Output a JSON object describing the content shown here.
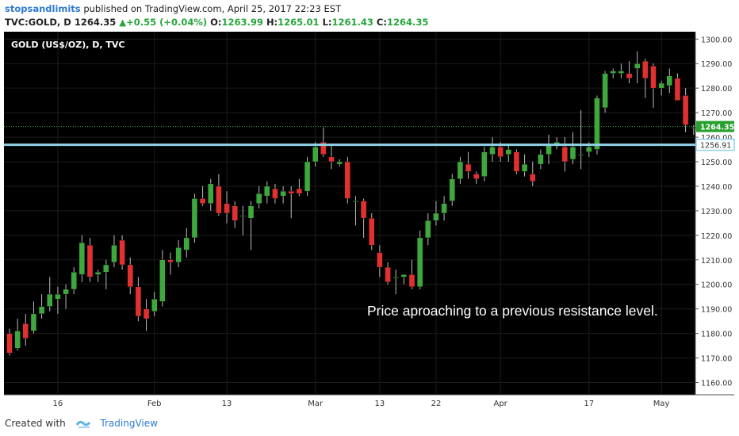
{
  "header": {
    "author": "stopsandlimits",
    "published_text": "published on TradingView.com, April 25, 2017 22:23 EST",
    "symbol": "TVC:GOLD, D",
    "last": "1264.35",
    "change": "+0.55 (+0.04%)",
    "o_label": "O:",
    "o_value": "1263.99",
    "h_label": "H:",
    "h_value": "1265.01",
    "l_label": "L:",
    "l_value": "1261.43",
    "c_label": "C:",
    "c_value": "1264.35"
  },
  "footer": {
    "created_with": "Created with",
    "brand": "TradingView"
  },
  "colors": {
    "background": "#000000",
    "up": "#3ea83e",
    "down": "#e03030",
    "level": "#8fd3e8",
    "price_line": "#3ea83e"
  },
  "chart_data": {
    "type": "candlestick",
    "title": "GOLD (US$/OZ), D, TVC",
    "annotation": "Price aproaching to a previous resistance level.",
    "ylim": [
      1155,
      1303
    ],
    "y_ticks": [
      "1160.00",
      "1170.00",
      "1180.00",
      "1190.00",
      "1200.00",
      "1210.00",
      "1220.00",
      "1230.00",
      "1240.00",
      "1250.00",
      "1260.00",
      "1270.00",
      "1280.00",
      "1290.00",
      "1300.00"
    ],
    "x_ticks": [
      {
        "label": "16",
        "index": 6
      },
      {
        "label": "Feb",
        "index": 18
      },
      {
        "label": "13",
        "index": 27
      },
      {
        "label": "Mar",
        "index": 38
      },
      {
        "label": "13",
        "index": 46
      },
      {
        "label": "22",
        "index": 53
      },
      {
        "label": "Apr",
        "index": 61
      },
      {
        "label": "17",
        "index": 72
      },
      {
        "label": "May",
        "index": 81
      }
    ],
    "horizontal_level": {
      "value": 1256.91,
      "label": "1256.91"
    },
    "last_price": {
      "value": 1264.35,
      "label": "1264.35"
    },
    "candles": [
      {
        "o": 1180,
        "h": 1182,
        "l": 1171,
        "c": 1172
      },
      {
        "o": 1174,
        "h": 1186,
        "l": 1173,
        "c": 1181
      },
      {
        "o": 1184,
        "h": 1188,
        "l": 1175,
        "c": 1178
      },
      {
        "o": 1181,
        "h": 1193,
        "l": 1180,
        "c": 1188
      },
      {
        "o": 1188,
        "h": 1196,
        "l": 1186,
        "c": 1191
      },
      {
        "o": 1191,
        "h": 1203,
        "l": 1189,
        "c": 1196
      },
      {
        "o": 1194,
        "h": 1199,
        "l": 1188,
        "c": 1196
      },
      {
        "o": 1196,
        "h": 1200,
        "l": 1190,
        "c": 1198
      },
      {
        "o": 1198,
        "h": 1207,
        "l": 1196,
        "c": 1205
      },
      {
        "o": 1204,
        "h": 1220,
        "l": 1201,
        "c": 1217
      },
      {
        "o": 1216,
        "h": 1219,
        "l": 1201,
        "c": 1203
      },
      {
        "o": 1204,
        "h": 1206,
        "l": 1201,
        "c": 1205
      },
      {
        "o": 1205,
        "h": 1210,
        "l": 1198,
        "c": 1208
      },
      {
        "o": 1209,
        "h": 1220,
        "l": 1207,
        "c": 1216
      },
      {
        "o": 1218,
        "h": 1220,
        "l": 1206,
        "c": 1208
      },
      {
        "o": 1208,
        "h": 1211,
        "l": 1196,
        "c": 1199
      },
      {
        "o": 1199,
        "h": 1203,
        "l": 1185,
        "c": 1187
      },
      {
        "o": 1190,
        "h": 1194,
        "l": 1181,
        "c": 1186
      },
      {
        "o": 1189,
        "h": 1197,
        "l": 1187,
        "c": 1194
      },
      {
        "o": 1193,
        "h": 1214,
        "l": 1191,
        "c": 1210
      },
      {
        "o": 1210,
        "h": 1213,
        "l": 1204,
        "c": 1209
      },
      {
        "o": 1209,
        "h": 1218,
        "l": 1207,
        "c": 1215
      },
      {
        "o": 1214,
        "h": 1223,
        "l": 1211,
        "c": 1219
      },
      {
        "o": 1219,
        "h": 1237,
        "l": 1217,
        "c": 1235
      },
      {
        "o": 1235,
        "h": 1240,
        "l": 1232,
        "c": 1233
      },
      {
        "o": 1233,
        "h": 1243,
        "l": 1230,
        "c": 1241
      },
      {
        "o": 1240,
        "h": 1245,
        "l": 1228,
        "c": 1229
      },
      {
        "o": 1233,
        "h": 1238,
        "l": 1225,
        "c": 1229
      },
      {
        "o": 1232,
        "h": 1234,
        "l": 1223,
        "c": 1226
      },
      {
        "o": 1228,
        "h": 1232,
        "l": 1220,
        "c": 1228
      },
      {
        "o": 1227,
        "h": 1234,
        "l": 1214,
        "c": 1232
      },
      {
        "o": 1233,
        "h": 1240,
        "l": 1231,
        "c": 1237
      },
      {
        "o": 1236,
        "h": 1242,
        "l": 1233,
        "c": 1240
      },
      {
        "o": 1239,
        "h": 1241,
        "l": 1233,
        "c": 1235
      },
      {
        "o": 1236,
        "h": 1240,
        "l": 1233,
        "c": 1238
      },
      {
        "o": 1238,
        "h": 1240,
        "l": 1227,
        "c": 1237
      },
      {
        "o": 1239,
        "h": 1243,
        "l": 1236,
        "c": 1237
      },
      {
        "o": 1238,
        "h": 1252,
        "l": 1236,
        "c": 1250
      },
      {
        "o": 1250,
        "h": 1258,
        "l": 1248,
        "c": 1256
      },
      {
        "o": 1258,
        "h": 1264,
        "l": 1252,
        "c": 1253
      },
      {
        "o": 1252,
        "h": 1257,
        "l": 1247,
        "c": 1250
      },
      {
        "o": 1249,
        "h": 1251,
        "l": 1248,
        "c": 1250
      },
      {
        "o": 1250,
        "h": 1252,
        "l": 1233,
        "c": 1235
      },
      {
        "o": 1234,
        "h": 1236,
        "l": 1224,
        "c": 1234
      },
      {
        "o": 1234,
        "h": 1235,
        "l": 1219,
        "c": 1227
      },
      {
        "o": 1227,
        "h": 1229,
        "l": 1214,
        "c": 1216
      },
      {
        "o": 1213,
        "h": 1216,
        "l": 1203,
        "c": 1207
      },
      {
        "o": 1207,
        "h": 1209,
        "l": 1200,
        "c": 1201
      },
      {
        "o": 1203,
        "h": 1206,
        "l": 1196,
        "c": 1203
      },
      {
        "o": 1203,
        "h": 1204,
        "l": 1200,
        "c": 1204
      },
      {
        "o": 1204,
        "h": 1210,
        "l": 1198,
        "c": 1199
      },
      {
        "o": 1199,
        "h": 1222,
        "l": 1198,
        "c": 1219
      },
      {
        "o": 1219,
        "h": 1229,
        "l": 1216,
        "c": 1226
      },
      {
        "o": 1226,
        "h": 1234,
        "l": 1224,
        "c": 1229
      },
      {
        "o": 1229,
        "h": 1236,
        "l": 1226,
        "c": 1233
      },
      {
        "o": 1234,
        "h": 1245,
        "l": 1232,
        "c": 1243
      },
      {
        "o": 1243,
        "h": 1252,
        "l": 1241,
        "c": 1250
      },
      {
        "o": 1249,
        "h": 1254,
        "l": 1243,
        "c": 1246
      },
      {
        "o": 1245,
        "h": 1246,
        "l": 1241,
        "c": 1243
      },
      {
        "o": 1244,
        "h": 1256,
        "l": 1242,
        "c": 1254
      },
      {
        "o": 1253,
        "h": 1260,
        "l": 1250,
        "c": 1256
      },
      {
        "o": 1256,
        "h": 1258,
        "l": 1250,
        "c": 1252
      },
      {
        "o": 1253,
        "h": 1257,
        "l": 1250,
        "c": 1255
      },
      {
        "o": 1254,
        "h": 1255,
        "l": 1245,
        "c": 1246
      },
      {
        "o": 1246,
        "h": 1253,
        "l": 1244,
        "c": 1249
      },
      {
        "o": 1245,
        "h": 1250,
        "l": 1240,
        "c": 1242
      },
      {
        "o": 1249,
        "h": 1255,
        "l": 1247,
        "c": 1253
      },
      {
        "o": 1253,
        "h": 1261,
        "l": 1249,
        "c": 1257
      },
      {
        "o": 1257,
        "h": 1260,
        "l": 1255,
        "c": 1258
      },
      {
        "o": 1256,
        "h": 1260,
        "l": 1246,
        "c": 1250
      },
      {
        "o": 1251,
        "h": 1262,
        "l": 1249,
        "c": 1256
      },
      {
        "o": 1253,
        "h": 1271,
        "l": 1247,
        "c": 1253
      },
      {
        "o": 1254,
        "h": 1258,
        "l": 1252,
        "c": 1256
      },
      {
        "o": 1255,
        "h": 1277,
        "l": 1253,
        "c": 1276
      },
      {
        "o": 1272,
        "h": 1287,
        "l": 1270,
        "c": 1286
      },
      {
        "o": 1286,
        "h": 1288,
        "l": 1284,
        "c": 1287
      },
      {
        "o": 1286,
        "h": 1290,
        "l": 1284,
        "c": 1287
      },
      {
        "o": 1286,
        "h": 1291,
        "l": 1282,
        "c": 1284
      },
      {
        "o": 1288,
        "h": 1295,
        "l": 1282,
        "c": 1290
      },
      {
        "o": 1291,
        "h": 1292,
        "l": 1276,
        "c": 1284
      },
      {
        "o": 1289,
        "h": 1290,
        "l": 1272,
        "c": 1280
      },
      {
        "o": 1280,
        "h": 1283,
        "l": 1277,
        "c": 1282
      },
      {
        "o": 1281,
        "h": 1288,
        "l": 1278,
        "c": 1285
      },
      {
        "o": 1284,
        "h": 1286,
        "l": 1275,
        "c": 1275
      },
      {
        "o": 1277,
        "h": 1280,
        "l": 1262,
        "c": 1265
      },
      {
        "o": 1264,
        "h": 1265,
        "l": 1261,
        "c": 1264
      }
    ]
  }
}
